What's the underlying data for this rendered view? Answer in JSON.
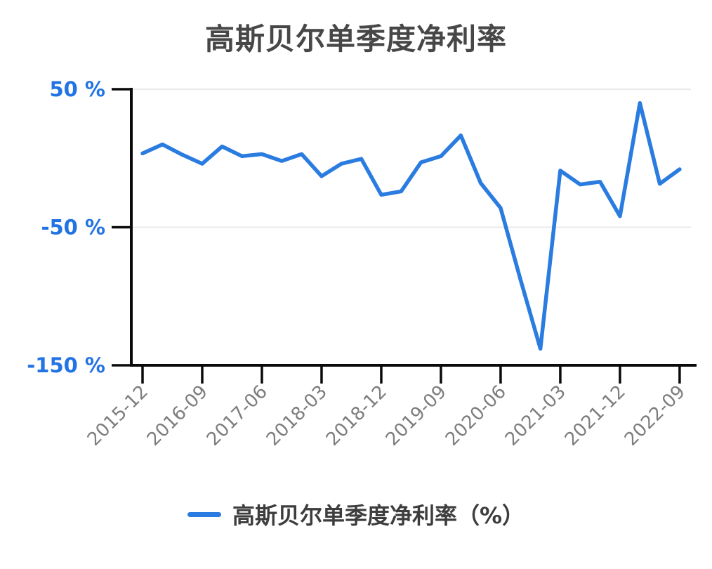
{
  "chart_data": {
    "type": "line",
    "title": "高斯贝尔单季度净利率",
    "categories": [
      "2015-12",
      "2016-03",
      "2016-06",
      "2016-09",
      "2016-12",
      "2017-03",
      "2017-06",
      "2017-09",
      "2017-12",
      "2018-03",
      "2018-06",
      "2018-09",
      "2018-12",
      "2019-03",
      "2019-06",
      "2019-09",
      "2019-12",
      "2020-03",
      "2020-06",
      "2020-09",
      "2020-12",
      "2021-03",
      "2021-06",
      "2021-09",
      "2021-12",
      "2022-03",
      "2022-06",
      "2022-09"
    ],
    "series": [
      {
        "name": "高斯贝尔单季度净利率（%）",
        "values": [
          3.5,
          10,
          2.5,
          -4,
          8.5,
          1.5,
          3,
          -2,
          3,
          -13,
          -4,
          -0.5,
          -26.5,
          -24,
          -3,
          1.5,
          16.5,
          -18,
          -36,
          -88,
          -138,
          -9,
          -19,
          -17,
          -42,
          40,
          -18.5,
          -8
        ]
      }
    ],
    "xlabel": "",
    "ylabel": "",
    "ylim": [
      -150,
      50
    ],
    "y_ticks": [
      {
        "label": "50 %",
        "value": 50
      },
      {
        "label": "-50 %",
        "value": -50
      },
      {
        "label": "-150 %",
        "value": -150
      }
    ],
    "x_tick_every": 3,
    "x_tick_labels": [
      "2015-12",
      "2016-09",
      "2017-06",
      "2018-03",
      "2018-12",
      "2019-09",
      "2020-06",
      "2021-03",
      "2021-12",
      "2022-09"
    ],
    "grid": "horizontal gridlines at 50 and -50, light gray",
    "legend_position": "bottom-center",
    "colors": {
      "line": "#2A7CE0",
      "y_tick_label": "#2273E3",
      "x_tick_label": "#7d7d7d",
      "title": "#474747",
      "legend_text": "#3d3d3d",
      "axis": "#0a0a0a",
      "gridline": "#e9e9e9",
      "background": "#ffffff"
    }
  }
}
